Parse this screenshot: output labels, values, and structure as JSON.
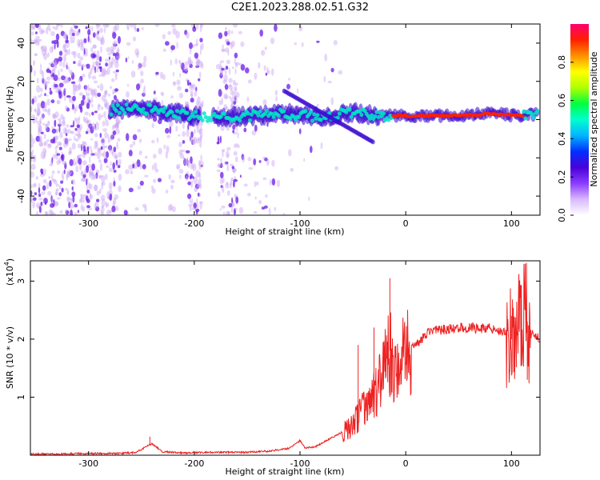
{
  "figure": {
    "title": "C2E1.2023.288.02.51.G32"
  },
  "chart_data": [
    {
      "type": "heatmap",
      "name": "spectrogram",
      "xlabel": "Height of straight line (km)",
      "ylabel": "Frequency (Hz)",
      "xlim": [
        -355,
        127
      ],
      "ylim": [
        -50,
        50
      ],
      "xticks": [
        -300,
        -200,
        -100,
        0,
        100
      ],
      "yticks": [
        -40,
        -20,
        0,
        20,
        40
      ],
      "grid": false,
      "colorbar": {
        "label": "Normalized spectral amplitude",
        "ticks": [
          0.0,
          0.2,
          0.4,
          0.6,
          0.8
        ],
        "range": [
          0,
          1
        ],
        "colors": [
          "#ffffff",
          "#d9b8ff",
          "#8a3cff",
          "#4a00d8",
          "#0030ff",
          "#00b4ff",
          "#00ffd0",
          "#00ff40",
          "#b0ff00",
          "#ffff00",
          "#ff9000",
          "#ff2000",
          "#ff0070"
        ]
      },
      "colors": {
        "noise": "#c9a3f5",
        "noise_dark": "#6a1ae8",
        "mid": "#3a0ad0",
        "hot": "#00e8c8",
        "peak": "#ff2000"
      },
      "ridge": [
        {
          "x": -280,
          "freq": 5,
          "level": 0.55
        },
        {
          "x": -250,
          "freq": 6,
          "level": 0.6
        },
        {
          "x": -225,
          "freq": 4,
          "level": 0.55
        },
        {
          "x": -190,
          "freq": 1,
          "level": 0.5
        },
        {
          "x": -150,
          "freq": 2,
          "level": 0.55
        },
        {
          "x": -110,
          "freq": 3,
          "level": 0.55
        },
        {
          "x": -80,
          "freq": 1,
          "level": 0.6
        },
        {
          "x": -50,
          "freq": 4,
          "level": 0.6
        },
        {
          "x": -25,
          "freq": 2,
          "level": 0.7
        },
        {
          "x": 0,
          "freq": 2,
          "level": 0.85
        },
        {
          "x": 40,
          "freq": 2,
          "level": 0.9
        },
        {
          "x": 80,
          "freq": 3,
          "level": 0.85
        },
        {
          "x": 110,
          "freq": 2,
          "level": 0.8
        },
        {
          "x": 125,
          "freq": 3,
          "level": 0.6
        }
      ]
    },
    {
      "type": "line",
      "name": "snr",
      "xlabel": "Height of straight line (km)",
      "ylabel": "SNR (10 * v/v)",
      "y_scale_label": "(x10",
      "y_scale_exp": "4",
      "y_scale_close": ")",
      "xlim": [
        -355,
        127
      ],
      "ylim": [
        0,
        3.35
      ],
      "xticks": [
        -300,
        -200,
        -100,
        0,
        100
      ],
      "yticks": [
        1,
        2,
        3
      ],
      "grid": false,
      "color": "#ee2222",
      "series": [
        {
          "x": [
            -355,
            -330,
            -300,
            -270,
            -255,
            -245,
            -240,
            -230,
            -210,
            -190,
            -170,
            -150,
            -130,
            -110,
            -100,
            -95,
            -85,
            -70,
            -60,
            -50,
            -45,
            -40,
            -35,
            -30,
            -25,
            -20,
            -15,
            -10,
            -5,
            0,
            5,
            10,
            15,
            20,
            30,
            40,
            50,
            60,
            70,
            80,
            90,
            95,
            100,
            105,
            110,
            113,
            117,
            122,
            127
          ],
          "values": [
            0.02,
            0.02,
            0.03,
            0.03,
            0.05,
            0.15,
            0.2,
            0.06,
            0.04,
            0.05,
            0.05,
            0.05,
            0.07,
            0.12,
            0.25,
            0.12,
            0.15,
            0.3,
            0.4,
            0.5,
            0.65,
            0.8,
            0.9,
            1.0,
            1.2,
            1.5,
            1.8,
            1.3,
            1.6,
            1.75,
            1.85,
            1.9,
            2.0,
            2.1,
            2.15,
            2.17,
            2.2,
            2.2,
            2.18,
            2.2,
            2.15,
            2.1,
            2.0,
            2.15,
            2.2,
            2.5,
            2.1,
            2.05,
            2.02
          ]
        }
      ],
      "spikes": [
        {
          "x": -242,
          "y": 0.32
        },
        {
          "x": -15,
          "y": 3.05
        },
        {
          "x": -30,
          "y": 2.2
        },
        {
          "x": -45,
          "y": 1.9
        },
        {
          "x": 107,
          "y": 2.9
        },
        {
          "x": 113,
          "y": 3.3
        },
        {
          "x": 115,
          "y": 1.3
        },
        {
          "x": 100,
          "y": 2.4
        }
      ]
    }
  ]
}
